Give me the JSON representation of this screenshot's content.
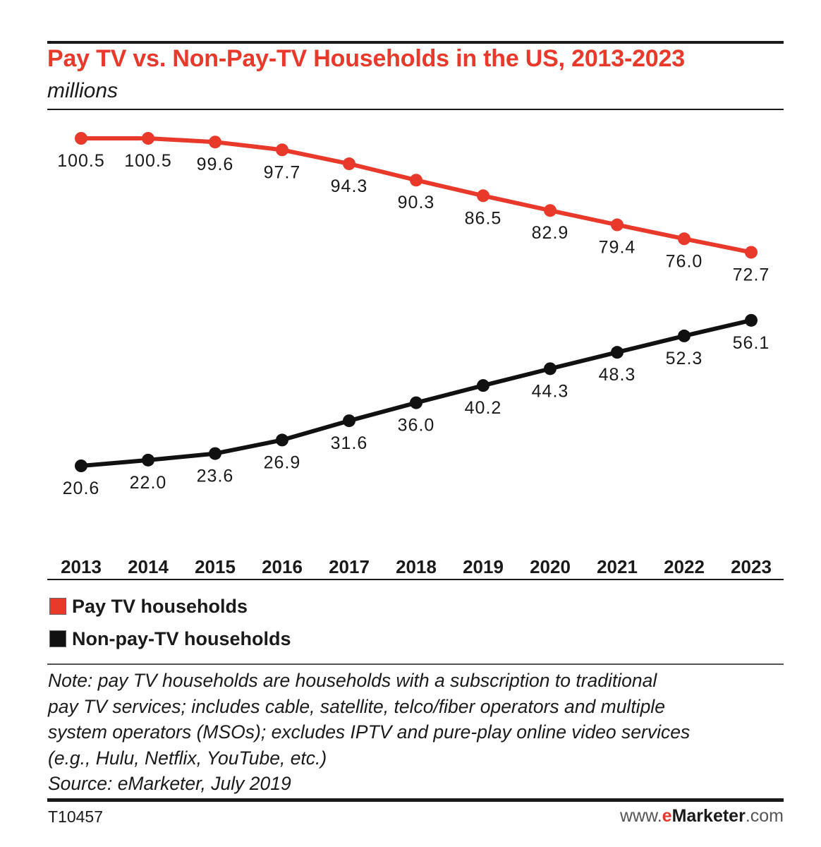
{
  "header": {
    "title": "Pay TV vs. Non-Pay-TV Households in the US, 2013-2023",
    "subtitle": "millions"
  },
  "chart_data": {
    "type": "line",
    "x": [
      "2013",
      "2014",
      "2015",
      "2016",
      "2017",
      "2018",
      "2019",
      "2020",
      "2021",
      "2022",
      "2023"
    ],
    "series": [
      {
        "name": "Pay TV households",
        "color": "#e8392b",
        "values": [
          100.5,
          100.5,
          99.6,
          97.7,
          94.3,
          90.3,
          86.5,
          82.9,
          79.4,
          76.0,
          72.7
        ],
        "labels": [
          "100.5",
          "100.5",
          "99.6",
          "97.7",
          "94.3",
          "90.3",
          "86.5",
          "82.9",
          "79.4",
          "76.0",
          "72.7"
        ]
      },
      {
        "name": "Non-pay-TV households",
        "color": "#111111",
        "values": [
          20.6,
          22.0,
          23.6,
          26.9,
          31.6,
          36.0,
          40.2,
          44.3,
          48.3,
          52.3,
          56.1
        ],
        "labels": [
          "20.6",
          "22.0",
          "23.6",
          "26.9",
          "31.6",
          "36.0",
          "40.2",
          "44.3",
          "48.3",
          "52.3",
          "56.1"
        ]
      }
    ],
    "ylim": [
      20,
      101
    ],
    "grid": false,
    "legend_placement": "bottom-left",
    "data_labels": true
  },
  "legend": [
    {
      "label": "Pay TV households",
      "color": "#e8392b"
    },
    {
      "label": "Non-pay-TV households",
      "color": "#111111"
    }
  ],
  "note": {
    "lines": [
      "Note: pay TV households are households with a subscription to traditional",
      "pay TV services; includes cable, satellite, telco/fiber operators and multiple",
      "system operators (MSOs); excludes IPTV and pure-play online video services",
      "(e.g., Hulu, Netflix, YouTube, etc.)",
      "Source: eMarketer, July 2019"
    ]
  },
  "footer": {
    "chart_id": "T10457",
    "site_prefix": "www.",
    "site_e": "e",
    "site_name": "Marketer",
    "site_suffix": ".com"
  }
}
